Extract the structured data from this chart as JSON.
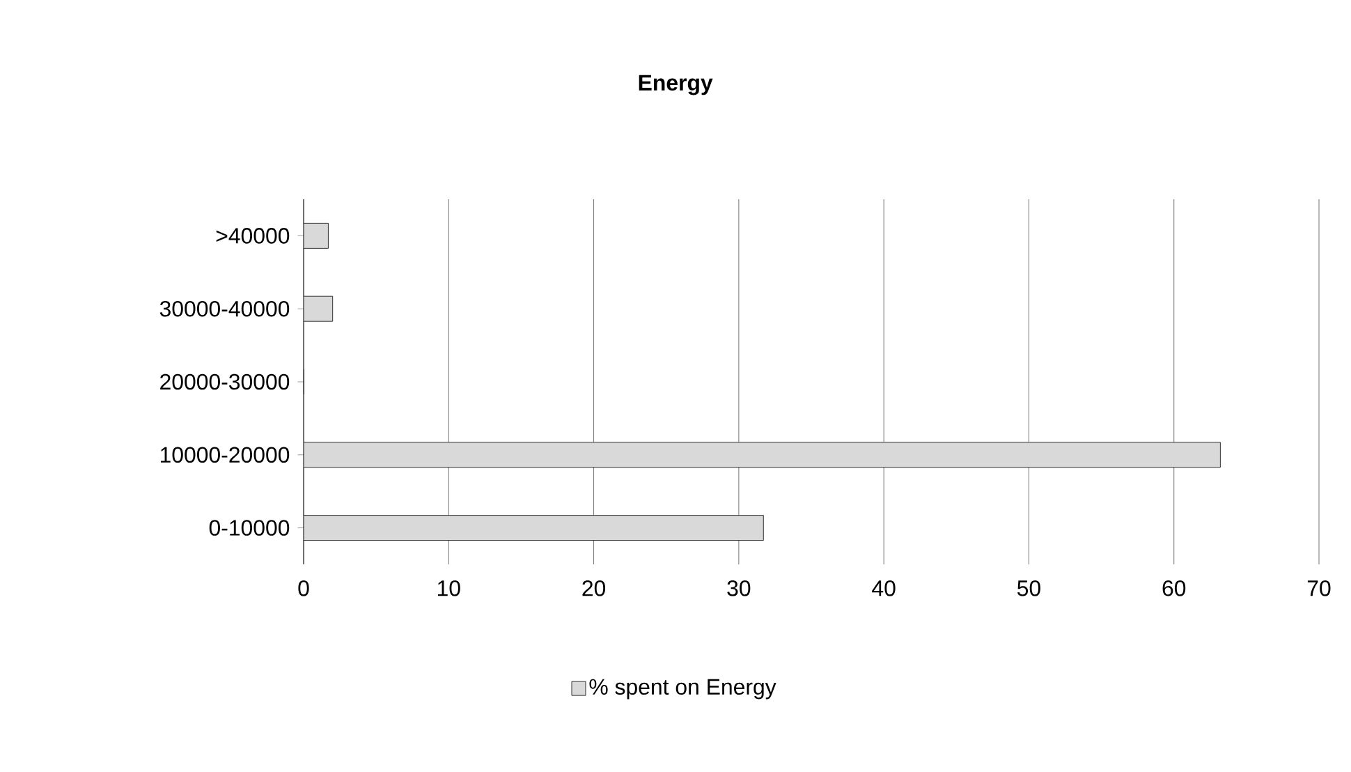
{
  "chart_data": {
    "type": "bar",
    "orientation": "horizontal",
    "title": "Energy",
    "categories": [
      ">40000",
      "30000-40000",
      "20000-30000",
      "10000-20000",
      "0-10000"
    ],
    "series": [
      {
        "name": "% spent on Energy",
        "color": "#d9d9d9",
        "values": [
          1.7,
          2.0,
          0,
          63.2,
          31.7
        ]
      }
    ],
    "xlim": [
      0,
      70
    ],
    "xticks": [
      0,
      10,
      20,
      30,
      40,
      50,
      60,
      70
    ],
    "grid": "x",
    "legend": "bottom"
  }
}
